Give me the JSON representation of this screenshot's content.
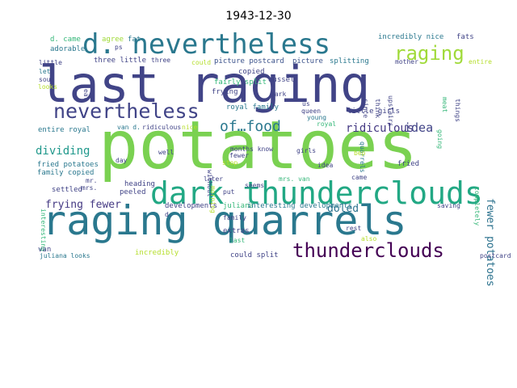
{
  "chart_data": {
    "type": "wordcloud",
    "title": "1943-12-30",
    "words": [
      {
        "text": "potatoes",
        "weight": 100,
        "color": "#7ad151",
        "orientation": "horizontal"
      },
      {
        "text": "last raging",
        "weight": 74,
        "color": "#414487",
        "orientation": "horizontal"
      },
      {
        "text": "raging quarrels",
        "weight": 68,
        "color": "#2a788e",
        "orientation": "horizontal"
      },
      {
        "text": "dark thunderclouds",
        "weight": 52,
        "color": "#22a884",
        "orientation": "horizontal"
      },
      {
        "text": "d. nevertheless",
        "weight": 44,
        "color": "#2a788e",
        "orientation": "horizontal"
      },
      {
        "text": "nevertheless",
        "weight": 33,
        "color": "#414487",
        "orientation": "horizontal"
      },
      {
        "text": "raging",
        "weight": 30,
        "color": "#a0da39",
        "orientation": "horizontal"
      },
      {
        "text": "thunderclouds",
        "weight": 29,
        "color": "#440154",
        "orientation": "horizontal"
      },
      {
        "text": "of…food",
        "weight": 23,
        "color": "#2a788e",
        "orientation": "horizontal"
      },
      {
        "text": "ridiculous",
        "weight": 20,
        "color": "#443983",
        "orientation": "horizontal"
      },
      {
        "text": "idea",
        "weight": 20,
        "color": "#414487",
        "orientation": "horizontal"
      },
      {
        "text": "fewer potatoes",
        "weight": 17,
        "color": "#2c728e",
        "orientation": "vertical"
      },
      {
        "text": "dividing",
        "weight": 18,
        "color": "#1f988b",
        "orientation": "horizontal"
      },
      {
        "text": "frying fewer",
        "weight": 17,
        "color": "#443983",
        "orientation": "horizontal"
      },
      {
        "text": "doled",
        "weight": 16,
        "color": "#2c728e",
        "orientation": "horizontal"
      },
      {
        "text": "incredibly nice",
        "weight": 11,
        "color": "#2a788e",
        "orientation": "horizontal"
      },
      {
        "text": "fats",
        "weight": 11,
        "color": "#414487",
        "orientation": "horizontal"
      },
      {
        "text": "d. came",
        "weight": 11,
        "color": "#35b779",
        "orientation": "horizontal"
      },
      {
        "text": "agree",
        "weight": 10,
        "color": "#a0da39",
        "orientation": "horizontal"
      },
      {
        "text": "fat",
        "weight": 10,
        "color": "#2a788e",
        "orientation": "horizontal"
      },
      {
        "text": "ps",
        "weight": 9,
        "color": "#414487",
        "orientation": "horizontal"
      },
      {
        "text": "adorable",
        "weight": 10,
        "color": "#2a788e",
        "orientation": "horizontal"
      },
      {
        "text": "three little",
        "weight": 10,
        "color": "#414487",
        "orientation": "horizontal"
      },
      {
        "text": "three",
        "weight": 9,
        "color": "#414487",
        "orientation": "horizontal"
      },
      {
        "text": "could",
        "weight": 9,
        "color": "#b5de2b",
        "orientation": "horizontal"
      },
      {
        "text": "picture postcard",
        "weight": 10,
        "color": "#3b528b",
        "orientation": "horizontal"
      },
      {
        "text": "picture",
        "weight": 10,
        "color": "#3b528b",
        "orientation": "horizontal"
      },
      {
        "text": "splitting",
        "weight": 10,
        "color": "#2a788e",
        "orientation": "horizontal"
      },
      {
        "text": "mother",
        "weight": 9,
        "color": "#414487",
        "orientation": "horizontal"
      },
      {
        "text": "entire",
        "weight": 9,
        "color": "#b5de2b",
        "orientation": "horizontal"
      },
      {
        "text": "little",
        "weight": 9,
        "color": "#414487",
        "orientation": "horizontal"
      },
      {
        "text": "let",
        "weight": 9,
        "color": "#2a788e",
        "orientation": "horizontal"
      },
      {
        "text": "soup",
        "weight": 9,
        "color": "#414487",
        "orientation": "horizontal"
      },
      {
        "text": "looks",
        "weight": 9,
        "color": "#b5de2b",
        "orientation": "horizontal"
      },
      {
        "text": "eat",
        "weight": 9,
        "color": "#414487",
        "orientation": "vertical"
      },
      {
        "text": "copied",
        "weight": 10,
        "color": "#414487",
        "orientation": "horizontal"
      },
      {
        "text": "fairly split",
        "weight": 10,
        "color": "#35b779",
        "orientation": "horizontal"
      },
      {
        "text": "dussel",
        "weight": 10,
        "color": "#414487",
        "orientation": "horizontal"
      },
      {
        "text": "frying",
        "weight": 10,
        "color": "#414487",
        "orientation": "horizontal"
      },
      {
        "text": "dark",
        "weight": 9,
        "color": "#414487",
        "orientation": "horizontal"
      },
      {
        "text": "since",
        "weight": 9,
        "color": "#414487",
        "orientation": "vertical"
      },
      {
        "text": "think",
        "weight": 9,
        "color": "#414487",
        "orientation": "vertical"
      },
      {
        "text": "upstairs",
        "weight": 9,
        "color": "#414487",
        "orientation": "vertical"
      },
      {
        "text": "meat",
        "weight": 9,
        "color": "#35b779",
        "orientation": "vertical"
      },
      {
        "text": "things",
        "weight": 9,
        "color": "#414487",
        "orientation": "vertical"
      },
      {
        "text": "royal family",
        "weight": 10,
        "color": "#2a788e",
        "orientation": "horizontal"
      },
      {
        "text": "us",
        "weight": 9,
        "color": "#414487",
        "orientation": "horizontal"
      },
      {
        "text": "queen",
        "weight": 9,
        "color": "#414487",
        "orientation": "horizontal"
      },
      {
        "text": "little girls",
        "weight": 10,
        "color": "#414487",
        "orientation": "horizontal"
      },
      {
        "text": "young",
        "weight": 9,
        "color": "#2a788e",
        "orientation": "horizontal"
      },
      {
        "text": "royal",
        "weight": 9,
        "color": "#35b779",
        "orientation": "horizontal"
      },
      {
        "text": "quarrels",
        "weight": 9,
        "color": "#2a788e",
        "orientation": "vertical"
      },
      {
        "text": "going",
        "weight": 9,
        "color": "#35b779",
        "orientation": "vertical"
      },
      {
        "text": "entire royal",
        "weight": 10,
        "color": "#2a788e",
        "orientation": "horizontal"
      },
      {
        "text": "van d.",
        "weight": 9,
        "color": "#2a788e",
        "orientation": "horizontal"
      },
      {
        "text": "ridiculous",
        "weight": 9,
        "color": "#414487",
        "orientation": "horizontal"
      },
      {
        "text": "nice",
        "weight": 9,
        "color": "#b5de2b",
        "orientation": "horizontal"
      },
      {
        "text": "months know",
        "weight": 9,
        "color": "#414487",
        "orientation": "horizontal"
      },
      {
        "text": "day",
        "weight": 9,
        "color": "#414487",
        "orientation": "horizontal"
      },
      {
        "text": "well",
        "weight": 9,
        "color": "#414487",
        "orientation": "horizontal"
      },
      {
        "text": "without",
        "weight": 9,
        "color": "#414487",
        "orientation": "vertical"
      },
      {
        "text": "fewer",
        "weight": 9,
        "color": "#414487",
        "orientation": "horizontal"
      },
      {
        "text": "stop",
        "weight": 9,
        "color": "#b5de2b",
        "orientation": "horizontal"
      },
      {
        "text": "girls",
        "weight": 9,
        "color": "#414487",
        "orientation": "horizontal"
      },
      {
        "text": "bep",
        "weight": 9,
        "color": "#b5de2b",
        "orientation": "horizontal"
      },
      {
        "text": "completely",
        "weight": 9,
        "color": "#35b779",
        "orientation": "vertical"
      },
      {
        "text": "fried potatoes",
        "weight": 10,
        "color": "#2a788e",
        "orientation": "horizontal"
      },
      {
        "text": "family copied",
        "weight": 10,
        "color": "#2a788e",
        "orientation": "horizontal"
      },
      {
        "text": "fried",
        "weight": 10,
        "color": "#414487",
        "orientation": "horizontal"
      },
      {
        "text": "interesting",
        "weight": 9,
        "color": "#35b779",
        "orientation": "vertical"
      },
      {
        "text": "mr.",
        "weight": 9,
        "color": "#414487",
        "orientation": "horizontal"
      },
      {
        "text": "mrs.",
        "weight": 9,
        "color": "#414487",
        "orientation": "horizontal"
      },
      {
        "text": "heading",
        "weight": 10,
        "color": "#414487",
        "orientation": "horizontal"
      },
      {
        "text": "peeled",
        "weight": 10,
        "color": "#414487",
        "orientation": "horizontal"
      },
      {
        "text": "later",
        "weight": 9,
        "color": "#414487",
        "orientation": "horizontal"
      },
      {
        "text": "mrs. van",
        "weight": 9,
        "color": "#35b779",
        "orientation": "horizontal"
      },
      {
        "text": "idea",
        "weight": 9,
        "color": "#414487",
        "orientation": "horizontal"
      },
      {
        "text": "came",
        "weight": 9,
        "color": "#414487",
        "orientation": "horizontal"
      },
      {
        "text": "settled",
        "weight": 10,
        "color": "#414487",
        "orientation": "horizontal"
      },
      {
        "text": "developments",
        "weight": 10,
        "color": "#414487",
        "orientation": "horizontal"
      },
      {
        "text": "julia na",
        "weight": 0,
        "color": "#ffffff",
        "orientation": "horizontal"
      },
      {
        "text": "juliana",
        "weight": 10,
        "color": "#35b779",
        "orientation": "horizontal"
      },
      {
        "text": "interesting developments",
        "weight": 10,
        "color": "#2a788e",
        "orientation": "horizontal"
      },
      {
        "text": "saving",
        "weight": 9,
        "color": "#414487",
        "orientation": "horizontal"
      },
      {
        "text": "d.",
        "weight": 9,
        "color": "#414487",
        "orientation": "horizontal"
      },
      {
        "text": "family",
        "weight": 9,
        "color": "#414487",
        "orientation": "horizontal"
      },
      {
        "text": "rest",
        "weight": 9,
        "color": "#414487",
        "orientation": "horizontal"
      },
      {
        "text": "also",
        "weight": 9,
        "color": "#b5de2b",
        "orientation": "horizontal"
      },
      {
        "text": "extras",
        "weight": 10,
        "color": "#414487",
        "orientation": "horizontal"
      },
      {
        "text": "last",
        "weight": 9,
        "color": "#35b779",
        "orientation": "horizontal"
      },
      {
        "text": "morning",
        "weight": 9,
        "color": "#b5de2b",
        "orientation": "vertical"
      },
      {
        "text": "seems",
        "weight": 9,
        "color": "#414487",
        "orientation": "horizontal"
      },
      {
        "text": "put",
        "weight": 9,
        "color": "#414487",
        "orientation": "horizontal"
      },
      {
        "text": "van",
        "weight": 9,
        "color": "#414487",
        "orientation": "horizontal"
      },
      {
        "text": "juliana looks",
        "weight": 10,
        "color": "#2a788e",
        "orientation": "horizontal"
      },
      {
        "text": "incredibly",
        "weight": 9,
        "color": "#b5de2b",
        "orientation": "horizontal"
      },
      {
        "text": "could split",
        "weight": 10,
        "color": "#414487",
        "orientation": "horizontal"
      },
      {
        "text": "postcard",
        "weight": 10,
        "color": "#414487",
        "orientation": "horizontal"
      },
      {
        "text": "oils",
        "weight": 9,
        "color": "#35b779",
        "orientation": "horizontal"
      }
    ]
  }
}
